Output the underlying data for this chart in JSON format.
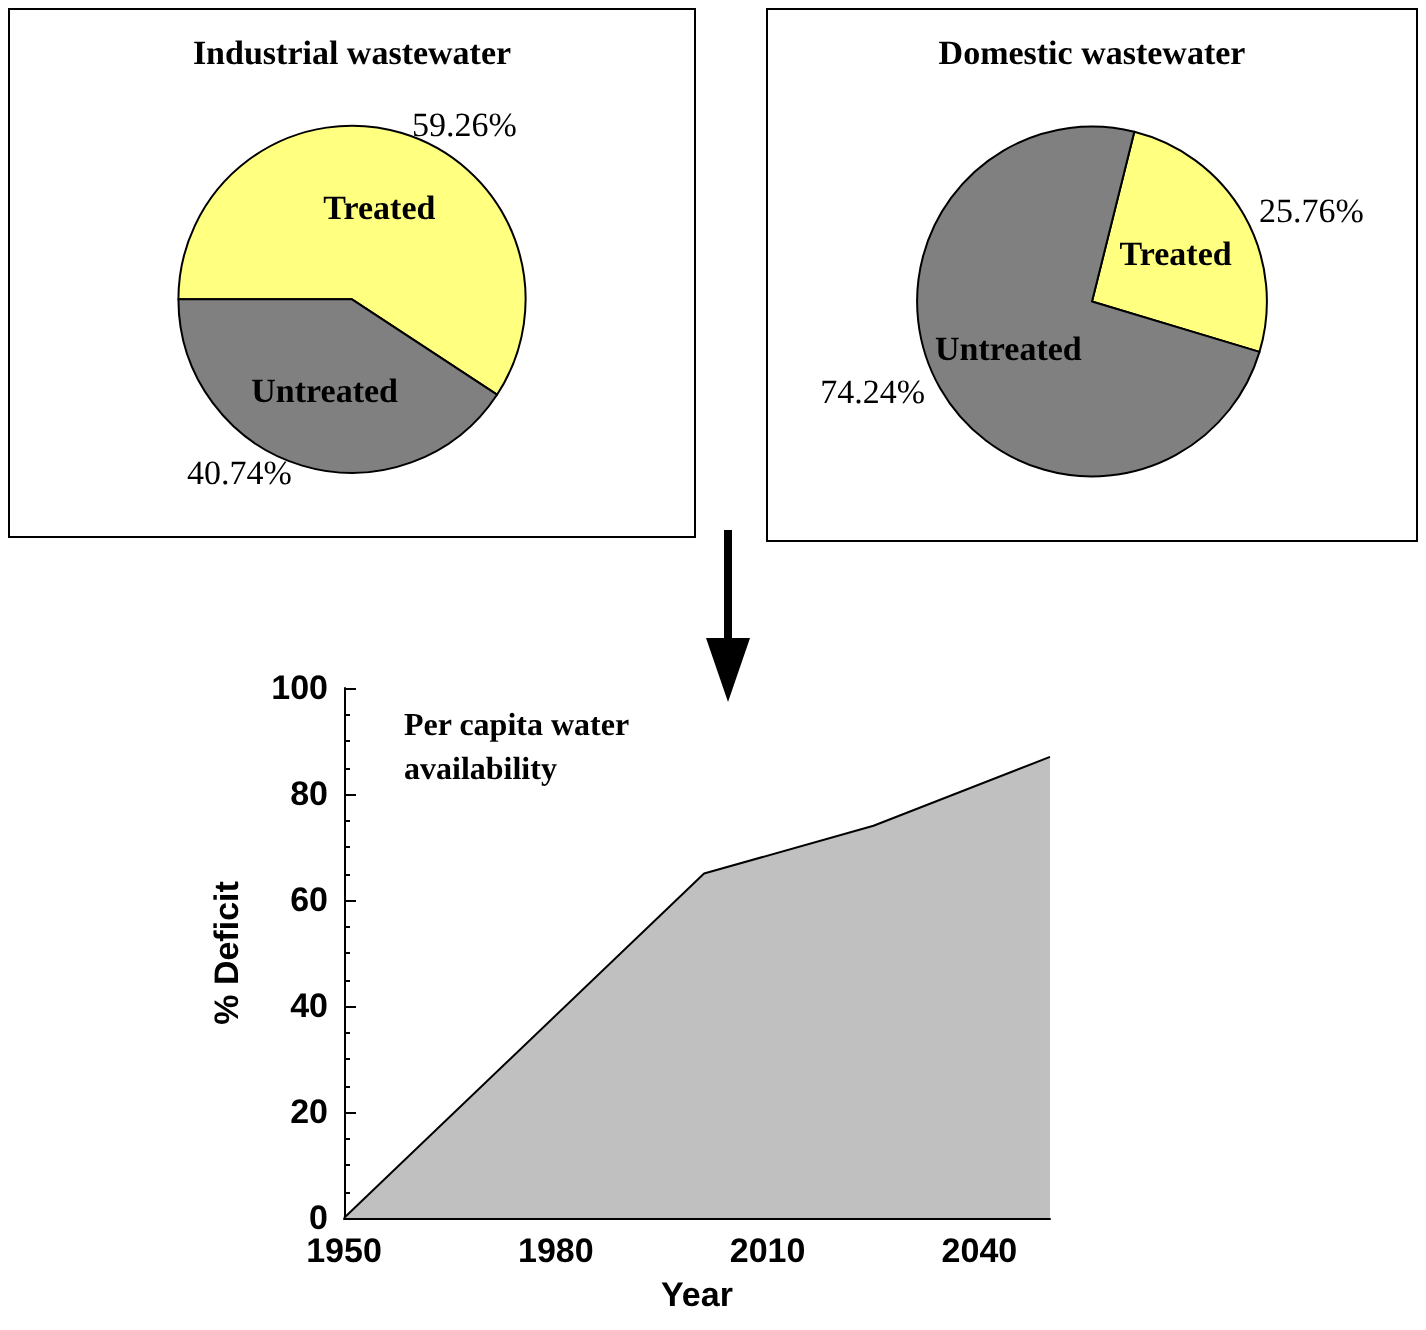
{
  "chart_data": [
    {
      "type": "pie",
      "title": "Industrial wastewater",
      "categories": [
        "Treated",
        "Untreated"
      ],
      "values": [
        59.26,
        40.74
      ],
      "colors": [
        "#ffff80",
        "#808080"
      ],
      "value_labels": [
        "59.26%",
        "40.74%"
      ]
    },
    {
      "type": "pie",
      "title": "Domestic wastewater",
      "categories": [
        "Treated",
        "Untreated"
      ],
      "values": [
        25.76,
        74.24
      ],
      "colors": [
        "#ffff80",
        "#808080"
      ],
      "value_labels": [
        "25.76%",
        "74.24%"
      ]
    },
    {
      "type": "area",
      "xlabel": "Year",
      "ylabel": "% Deficit",
      "annotations": [
        "Per capita water availability"
      ],
      "x": [
        1950,
        2001,
        2025,
        2050
      ],
      "series": [
        {
          "color": "#c0c0c0",
          "values": [
            0,
            65,
            74,
            87
          ]
        }
      ],
      "xlim": [
        1950,
        2050
      ],
      "xticks": [
        {
          "value": 1950,
          "label": "1950"
        },
        {
          "value": 1980,
          "label": "1980"
        },
        {
          "value": 2010,
          "label": "2010"
        },
        {
          "value": 2040,
          "label": "2040"
        }
      ],
      "ylim": [
        0,
        100
      ],
      "yticks": [
        0,
        20,
        40,
        60,
        80,
        100
      ]
    }
  ]
}
